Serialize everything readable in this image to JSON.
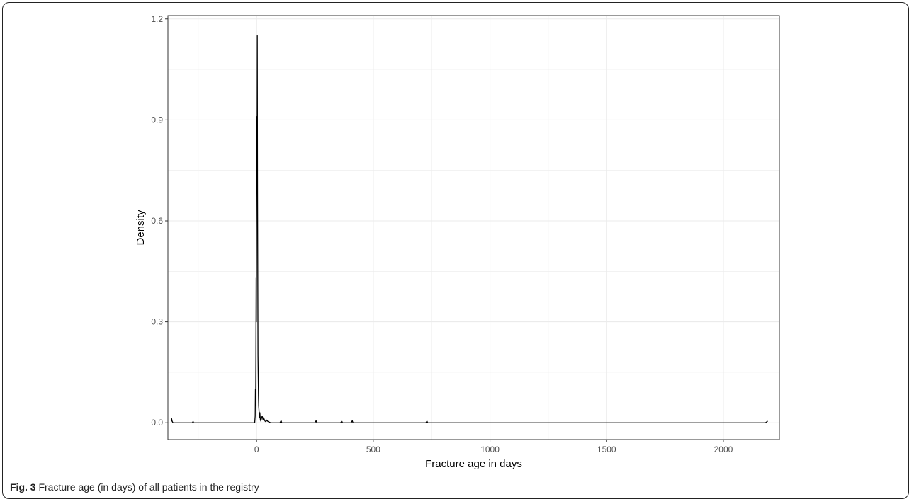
{
  "caption": {
    "figure_label": "Fig. 3",
    "text": "Fracture age (in days) of all patients in the registry"
  },
  "chart_data": {
    "type": "line",
    "title": "",
    "xlabel": "Fracture age in days",
    "ylabel": "Density",
    "xlim": [
      -380,
      2240
    ],
    "ylim": [
      -0.05,
      1.21
    ],
    "xticks": [
      0,
      500,
      1000,
      1500,
      2000
    ],
    "yticks": [
      0.0,
      0.3,
      0.6,
      0.9,
      1.2
    ],
    "xtick_labels": [
      "0",
      "500",
      "1000",
      "1500",
      "2000"
    ],
    "ytick_labels": [
      "0.0",
      "0.3",
      "0.6",
      "0.9",
      "1.2"
    ],
    "grid": true,
    "colors": {
      "line": "#000000",
      "grid": "#ebebeb",
      "panel_border": "#333333"
    },
    "series": [
      {
        "x": [
          -365,
          -364,
          -362,
          -360,
          -358,
          -340,
          -300,
          -275,
          -272,
          -270,
          -255,
          -8,
          -6,
          -5,
          -4,
          -3,
          -2,
          -1,
          0,
          1,
          2,
          3,
          4,
          5,
          6,
          7,
          8,
          9,
          10,
          11,
          12,
          13,
          14,
          16,
          18,
          20,
          24,
          28,
          30,
          33,
          36,
          40,
          44,
          48,
          60,
          100,
          105,
          108,
          115,
          250,
          255,
          258,
          265,
          360,
          365,
          368,
          375,
          405,
          410,
          413,
          420,
          725,
          730,
          733,
          740,
          2180,
          2190
        ],
        "y": [
          0.004,
          0.012,
          0.005,
          0.002,
          0.0,
          0.0,
          0.0,
          0.0,
          0.004,
          0.0,
          0.0,
          0.0,
          0.02,
          0.1,
          0.05,
          0.2,
          0.43,
          0.3,
          0.66,
          0.91,
          0.7,
          1.15,
          0.69,
          0.45,
          0.2,
          0.14,
          0.08,
          0.05,
          0.04,
          0.03,
          0.02,
          0.015,
          0.03,
          0.01,
          0.005,
          0.01,
          0.02,
          0.008,
          0.015,
          0.01,
          0.005,
          0.003,
          0.008,
          0.004,
          0.0,
          0.0,
          0.006,
          0.0,
          0.0,
          0.0,
          0.006,
          0.0,
          0.0,
          0.0,
          0.005,
          0.0,
          0.0,
          0.0,
          0.006,
          0.0,
          0.0,
          0.0,
          0.005,
          0.0,
          0.0,
          0.0,
          0.005
        ]
      }
    ]
  }
}
